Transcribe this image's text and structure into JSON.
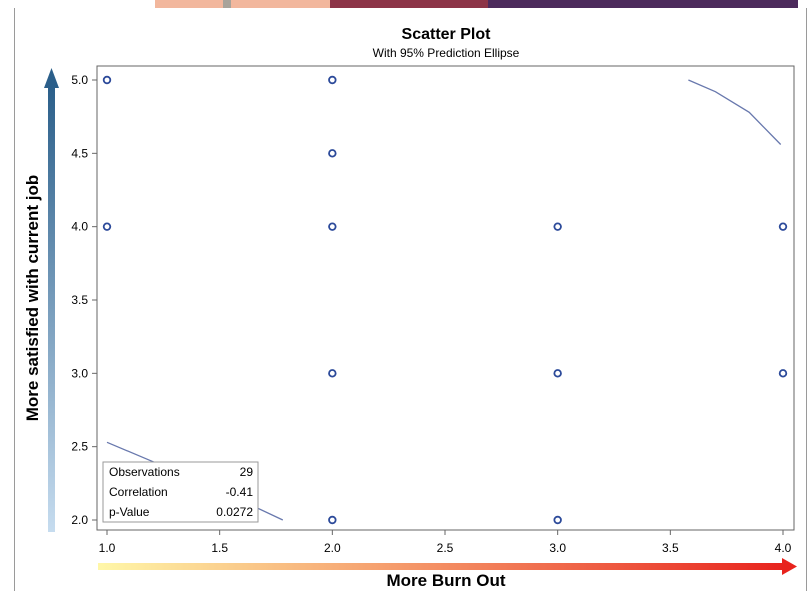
{
  "chart_data": {
    "type": "scatter",
    "title": "Scatter Plot",
    "subtitle": "With 95% Prediction Ellipse",
    "xlabel": "More Burn Out",
    "ylabel": "More satisfied with current job",
    "xlim": [
      1.0,
      4.0
    ],
    "ylim": [
      2.0,
      5.0
    ],
    "xticks": [
      "1.0",
      "1.5",
      "2.0",
      "2.5",
      "3.0",
      "3.5",
      "4.0"
    ],
    "yticks": [
      "2.0",
      "2.5",
      "3.0",
      "3.5",
      "4.0",
      "4.5",
      "5.0"
    ],
    "points": [
      {
        "x": 1,
        "y": 5
      },
      {
        "x": 1,
        "y": 4
      },
      {
        "x": 2,
        "y": 5
      },
      {
        "x": 2,
        "y": 4.5
      },
      {
        "x": 2,
        "y": 4
      },
      {
        "x": 2,
        "y": 3
      },
      {
        "x": 2,
        "y": 2
      },
      {
        "x": 3,
        "y": 4
      },
      {
        "x": 3,
        "y": 3
      },
      {
        "x": 3,
        "y": 2
      },
      {
        "x": 4,
        "y": 4
      },
      {
        "x": 4,
        "y": 3
      }
    ],
    "ellipse_segments": [
      [
        [
          1.0,
          2.53
        ],
        [
          1.2,
          2.4
        ],
        [
          1.4,
          2.27
        ],
        [
          1.6,
          2.13
        ],
        [
          1.78,
          2.0
        ]
      ],
      [
        [
          3.58,
          5.0
        ],
        [
          3.7,
          4.92
        ],
        [
          3.85,
          4.78
        ],
        [
          3.99,
          4.56
        ]
      ]
    ],
    "stats": {
      "rows": [
        {
          "label": "Observations",
          "value": "29"
        },
        {
          "label": "Correlation",
          "value": "-0.41"
        },
        {
          "label": "p-Value",
          "value": "0.0272"
        }
      ]
    },
    "grid": false,
    "colors": {
      "marker": "#2c4a9a",
      "ellipse": "#6878ad",
      "y_arrow_top": "#2b5f8a",
      "y_arrow_bottom": "#c6dcef",
      "x_arrow_start": "#fff7a8",
      "x_arrow_end": "#e8231d"
    }
  }
}
